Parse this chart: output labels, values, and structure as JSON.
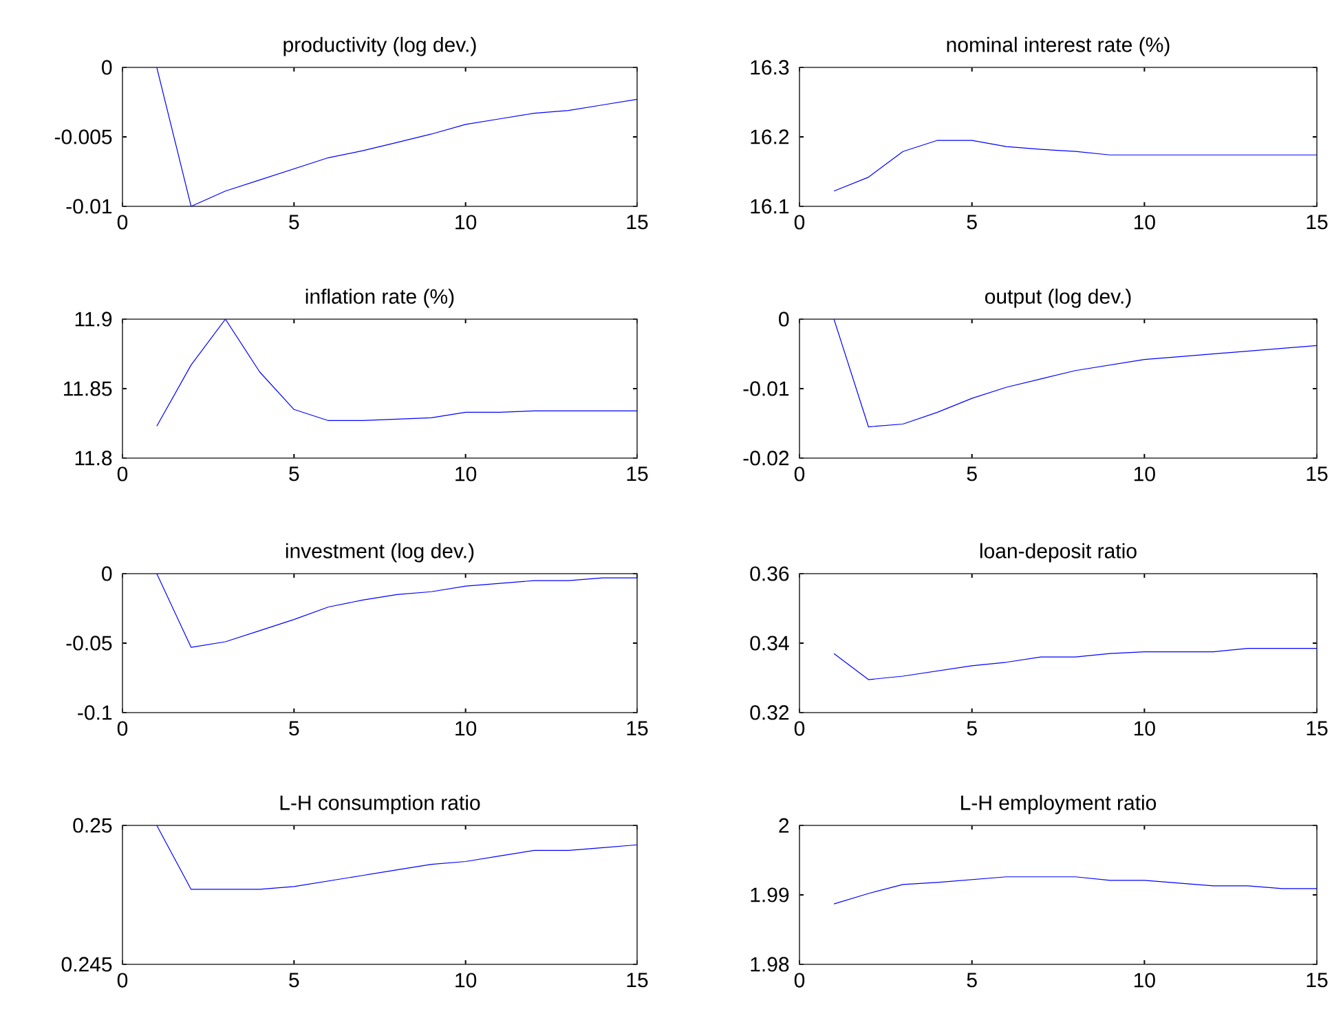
{
  "chart_data": [
    {
      "type": "line",
      "title": "productivity (log dev.)",
      "x": [
        1,
        2,
        3,
        4,
        5,
        6,
        7,
        8,
        9,
        10,
        11,
        12,
        13,
        14,
        15
      ],
      "values": [
        0,
        -0.01,
        -0.0089,
        -0.0081,
        -0.0073,
        -0.0065,
        -0.006,
        -0.0054,
        -0.0048,
        -0.0041,
        -0.0037,
        -0.0033,
        -0.0031,
        -0.0027,
        -0.0023
      ],
      "color": "#0000ff",
      "xlim": [
        0,
        15
      ],
      "xticks": [
        0,
        5,
        10,
        15
      ],
      "ylim": [
        -0.01,
        0
      ],
      "yticks": [
        -0.01,
        -0.005,
        0
      ]
    },
    {
      "type": "line",
      "title": "nominal interest rate (%)",
      "x": [
        1,
        2,
        3,
        4,
        5,
        6,
        7,
        8,
        9,
        10,
        11,
        12,
        13,
        14,
        15
      ],
      "values": [
        16.122,
        16.142,
        16.179,
        16.195,
        16.195,
        16.186,
        16.182,
        16.179,
        16.174,
        16.174,
        16.174,
        16.174,
        16.174,
        16.174,
        16.174
      ],
      "color": "#0000ff",
      "xlim": [
        0,
        15
      ],
      "xticks": [
        0,
        5,
        10,
        15
      ],
      "ylim": [
        16.1,
        16.3
      ],
      "yticks": [
        16.1,
        16.2,
        16.3
      ]
    },
    {
      "type": "line",
      "title": "inflation rate (%)",
      "x": [
        1,
        2,
        3,
        4,
        5,
        6,
        7,
        8,
        9,
        10,
        11,
        12,
        13,
        14,
        15
      ],
      "values": [
        11.823,
        11.867,
        11.9,
        11.862,
        11.835,
        11.827,
        11.827,
        11.828,
        11.829,
        11.833,
        11.833,
        11.834,
        11.834,
        11.834,
        11.834
      ],
      "color": "#0000ff",
      "xlim": [
        0,
        15
      ],
      "xticks": [
        0,
        5,
        10,
        15
      ],
      "ylim": [
        11.8,
        11.9
      ],
      "yticks": [
        11.8,
        11.85,
        11.9
      ]
    },
    {
      "type": "line",
      "title": "output (log dev.)",
      "x": [
        1,
        2,
        3,
        4,
        5,
        6,
        7,
        8,
        9,
        10,
        11,
        12,
        13,
        14,
        15
      ],
      "values": [
        0,
        -0.0155,
        -0.0151,
        -0.0134,
        -0.0114,
        -0.0098,
        -0.0086,
        -0.0074,
        -0.0066,
        -0.0058,
        -0.0054,
        -0.005,
        -0.0046,
        -0.0042,
        -0.0038
      ],
      "color": "#0000ff",
      "xlim": [
        0,
        15
      ],
      "xticks": [
        0,
        5,
        10,
        15
      ],
      "ylim": [
        -0.02,
        0
      ],
      "yticks": [
        -0.02,
        -0.01,
        0
      ]
    },
    {
      "type": "line",
      "title": "investment (log dev.)",
      "x": [
        1,
        2,
        3,
        4,
        5,
        6,
        7,
        8,
        9,
        10,
        11,
        12,
        13,
        14,
        15
      ],
      "values": [
        0,
        -0.053,
        -0.049,
        -0.041,
        -0.033,
        -0.024,
        -0.019,
        -0.015,
        -0.013,
        -0.009,
        -0.007,
        -0.005,
        -0.005,
        -0.003,
        -0.003
      ],
      "color": "#0000ff",
      "xlim": [
        0,
        15
      ],
      "xticks": [
        0,
        5,
        10,
        15
      ],
      "ylim": [
        -0.1,
        0
      ],
      "yticks": [
        -0.1,
        -0.05,
        0
      ]
    },
    {
      "type": "line",
      "title": "loan-deposit ratio",
      "x": [
        1,
        2,
        3,
        4,
        5,
        6,
        7,
        8,
        9,
        10,
        11,
        12,
        13,
        14,
        15
      ],
      "values": [
        0.337,
        0.3295,
        0.3305,
        0.332,
        0.3335,
        0.3345,
        0.336,
        0.336,
        0.337,
        0.3375,
        0.3375,
        0.3375,
        0.3385,
        0.3385,
        0.3385
      ],
      "color": "#0000ff",
      "xlim": [
        0,
        15
      ],
      "xticks": [
        0,
        5,
        10,
        15
      ],
      "ylim": [
        0.32,
        0.36
      ],
      "yticks": [
        0.32,
        0.34,
        0.36
      ]
    },
    {
      "type": "line",
      "title": "L-H consumption ratio",
      "x": [
        1,
        2,
        3,
        4,
        5,
        6,
        7,
        8,
        9,
        10,
        11,
        12,
        13,
        14,
        15
      ],
      "values": [
        0.25,
        0.2477,
        0.2477,
        0.2477,
        0.2478,
        0.248,
        0.2482,
        0.2484,
        0.2486,
        0.2487,
        0.2489,
        0.2491,
        0.2491,
        0.2492,
        0.2493
      ],
      "color": "#0000ff",
      "xlim": [
        0,
        15
      ],
      "xticks": [
        0,
        5,
        10,
        15
      ],
      "ylim": [
        0.245,
        0.25
      ],
      "yticks": [
        0.245,
        0.25
      ]
    },
    {
      "type": "line",
      "title": "L-H employment ratio",
      "x": [
        1,
        2,
        3,
        4,
        5,
        6,
        7,
        8,
        9,
        10,
        11,
        12,
        13,
        14,
        15
      ],
      "values": [
        1.9887,
        1.9902,
        1.9915,
        1.9918,
        1.9922,
        1.9926,
        1.9926,
        1.9926,
        1.9921,
        1.9921,
        1.9917,
        1.9913,
        1.9913,
        1.9909,
        1.9909
      ],
      "color": "#0000ff",
      "xlim": [
        0,
        15
      ],
      "xticks": [
        0,
        5,
        10,
        15
      ],
      "ylim": [
        1.98,
        2
      ],
      "yticks": [
        1.98,
        1.99,
        2
      ]
    }
  ]
}
